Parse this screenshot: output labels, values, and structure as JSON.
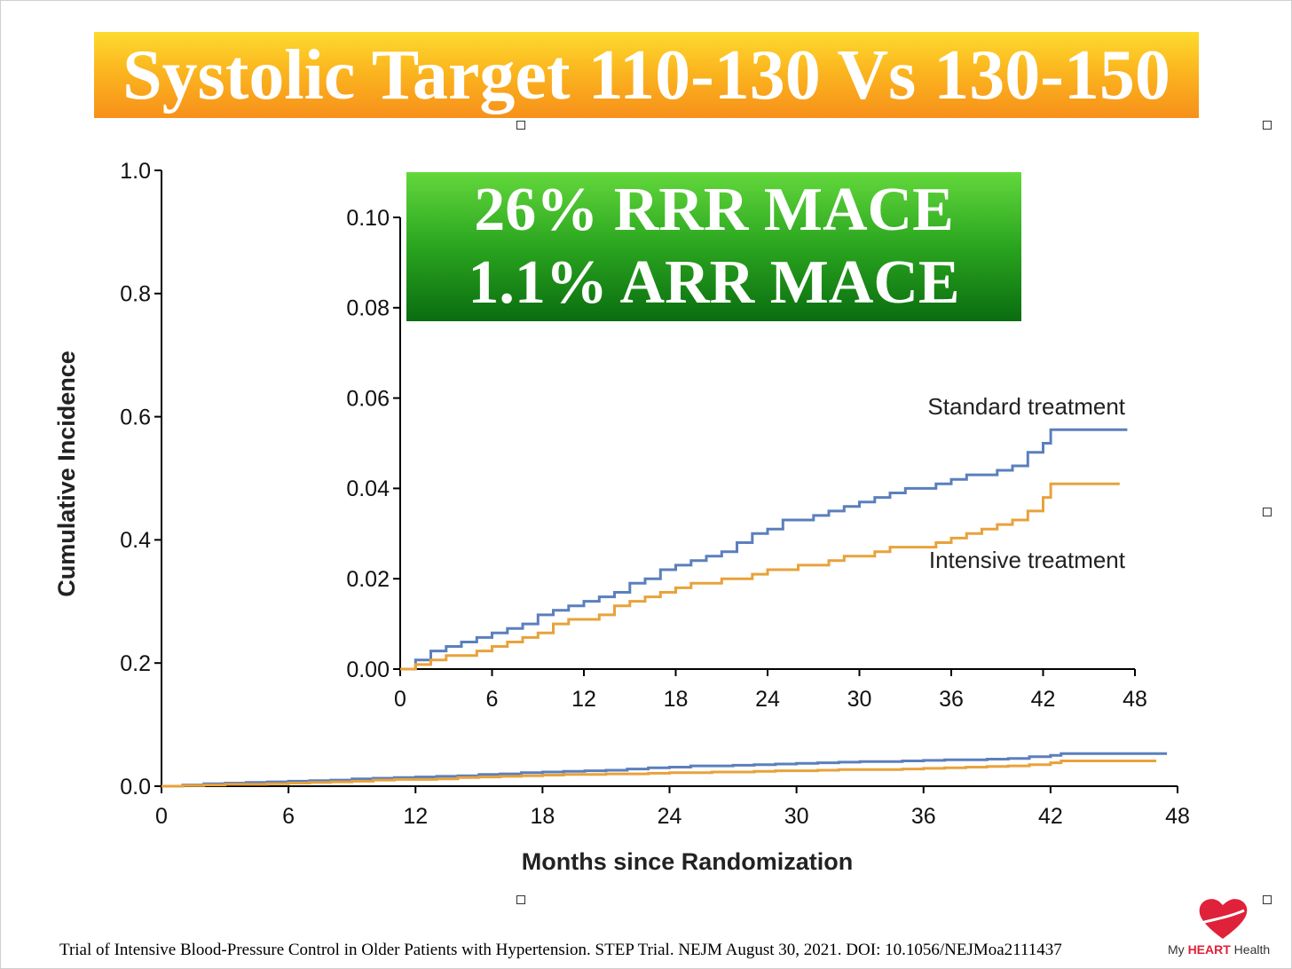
{
  "slide": {
    "title": "Systolic Target 110-130 Vs 130-150",
    "highlight_line1": "26% RRR MACE",
    "highlight_line2": "1.1% ARR MACE",
    "citation": "Trial of Intensive Blood-Pressure Control in Older Patients with Hypertension. STEP Trial. NEJM August 30, 2021. DOI: 10.1056/NEJMoa2111437",
    "logo": {
      "prefix": "My ",
      "brand": "HEART",
      "suffix": " Health"
    },
    "colors": {
      "title_gradient_top": "#fddb2e",
      "title_gradient_bottom": "#f7901a",
      "highlight_gradient_top": "#63d83c",
      "highlight_gradient_bottom": "#0a6d10",
      "standard_series": "#5b7fbd",
      "intensive_series": "#e8a23b",
      "logo_heart": "#e0213a"
    }
  },
  "chart_data": [
    {
      "type": "line",
      "xlabel": "Months since Randomization",
      "ylabel": "Cumulative Incidence",
      "xlim": [
        0,
        48
      ],
      "ylim": [
        0,
        1.0
      ],
      "x_ticks": [
        "0",
        "6",
        "12",
        "18",
        "24",
        "30",
        "36",
        "42",
        "48"
      ],
      "y_ticks": [
        "0.0",
        "0.2",
        "0.4",
        "0.6",
        "0.8",
        "1.0"
      ],
      "grid": false,
      "series": [
        {
          "name": "Standard treatment",
          "color": "#5b7fbd",
          "points": [
            [
              0,
              0
            ],
            [
              1,
              0.002
            ],
            [
              2,
              0.004
            ],
            [
              3,
              0.005
            ],
            [
              4,
              0.006
            ],
            [
              5,
              0.007
            ],
            [
              6,
              0.008
            ],
            [
              7,
              0.009
            ],
            [
              8,
              0.01
            ],
            [
              9,
              0.012
            ],
            [
              10,
              0.013
            ],
            [
              11,
              0.014
            ],
            [
              12,
              0.015
            ],
            [
              13,
              0.016
            ],
            [
              14,
              0.017
            ],
            [
              15,
              0.019
            ],
            [
              16,
              0.02
            ],
            [
              17,
              0.022
            ],
            [
              18,
              0.023
            ],
            [
              19,
              0.024
            ],
            [
              20,
              0.025
            ],
            [
              21,
              0.026
            ],
            [
              22,
              0.028
            ],
            [
              23,
              0.03
            ],
            [
              24,
              0.031
            ],
            [
              25,
              0.033
            ],
            [
              26,
              0.033
            ],
            [
              27,
              0.034
            ],
            [
              28,
              0.035
            ],
            [
              29,
              0.036
            ],
            [
              30,
              0.037
            ],
            [
              31,
              0.038
            ],
            [
              32,
              0.039
            ],
            [
              33,
              0.04
            ],
            [
              34,
              0.04
            ],
            [
              35,
              0.041
            ],
            [
              36,
              0.042
            ],
            [
              37,
              0.043
            ],
            [
              38,
              0.043
            ],
            [
              39,
              0.044
            ],
            [
              40,
              0.045
            ],
            [
              41,
              0.048
            ],
            [
              42,
              0.05
            ],
            [
              42.5,
              0.053
            ],
            [
              47.5,
              0.053
            ]
          ]
        },
        {
          "name": "Intensive treatment",
          "color": "#e8a23b",
          "points": [
            [
              0,
              0
            ],
            [
              1,
              0.001
            ],
            [
              2,
              0.002
            ],
            [
              3,
              0.003
            ],
            [
              4,
              0.003
            ],
            [
              5,
              0.004
            ],
            [
              6,
              0.005
            ],
            [
              7,
              0.006
            ],
            [
              8,
              0.007
            ],
            [
              9,
              0.008
            ],
            [
              10,
              0.01
            ],
            [
              11,
              0.011
            ],
            [
              12,
              0.011
            ],
            [
              13,
              0.012
            ],
            [
              14,
              0.014
            ],
            [
              15,
              0.015
            ],
            [
              16,
              0.016
            ],
            [
              17,
              0.017
            ],
            [
              18,
              0.018
            ],
            [
              19,
              0.019
            ],
            [
              20,
              0.019
            ],
            [
              21,
              0.02
            ],
            [
              22,
              0.02
            ],
            [
              23,
              0.021
            ],
            [
              24,
              0.022
            ],
            [
              25,
              0.022
            ],
            [
              26,
              0.023
            ],
            [
              27,
              0.023
            ],
            [
              28,
              0.024
            ],
            [
              29,
              0.025
            ],
            [
              30,
              0.025
            ],
            [
              31,
              0.026
            ],
            [
              32,
              0.027
            ],
            [
              33,
              0.027
            ],
            [
              34,
              0.027
            ],
            [
              35,
              0.028
            ],
            [
              36,
              0.029
            ],
            [
              37,
              0.03
            ],
            [
              38,
              0.031
            ],
            [
              39,
              0.032
            ],
            [
              40,
              0.033
            ],
            [
              41,
              0.035
            ],
            [
              42,
              0.038
            ],
            [
              42.5,
              0.041
            ],
            [
              47,
              0.041
            ]
          ]
        }
      ]
    },
    {
      "type": "line",
      "xlim": [
        0,
        48
      ],
      "ylim": [
        0,
        0.1
      ],
      "x_ticks": [
        "0",
        "6",
        "12",
        "18",
        "24",
        "30",
        "36",
        "42",
        "48"
      ],
      "y_ticks": [
        "0.00",
        "0.02",
        "0.04",
        "0.06",
        "0.08",
        "0.10"
      ],
      "grid": false,
      "series": [
        {
          "name": "Standard treatment",
          "color": "#5b7fbd",
          "points": [
            [
              0,
              0
            ],
            [
              1,
              0.002
            ],
            [
              2,
              0.004
            ],
            [
              3,
              0.005
            ],
            [
              4,
              0.006
            ],
            [
              5,
              0.007
            ],
            [
              6,
              0.008
            ],
            [
              7,
              0.009
            ],
            [
              8,
              0.01
            ],
            [
              9,
              0.012
            ],
            [
              10,
              0.013
            ],
            [
              11,
              0.014
            ],
            [
              12,
              0.015
            ],
            [
              13,
              0.016
            ],
            [
              14,
              0.017
            ],
            [
              15,
              0.019
            ],
            [
              16,
              0.02
            ],
            [
              17,
              0.022
            ],
            [
              18,
              0.023
            ],
            [
              19,
              0.024
            ],
            [
              20,
              0.025
            ],
            [
              21,
              0.026
            ],
            [
              22,
              0.028
            ],
            [
              23,
              0.03
            ],
            [
              24,
              0.031
            ],
            [
              25,
              0.033
            ],
            [
              26,
              0.033
            ],
            [
              27,
              0.034
            ],
            [
              28,
              0.035
            ],
            [
              29,
              0.036
            ],
            [
              30,
              0.037
            ],
            [
              31,
              0.038
            ],
            [
              32,
              0.039
            ],
            [
              33,
              0.04
            ],
            [
              34,
              0.04
            ],
            [
              35,
              0.041
            ],
            [
              36,
              0.042
            ],
            [
              37,
              0.043
            ],
            [
              38,
              0.043
            ],
            [
              39,
              0.044
            ],
            [
              40,
              0.045
            ],
            [
              41,
              0.048
            ],
            [
              42,
              0.05
            ],
            [
              42.5,
              0.053
            ],
            [
              47.5,
              0.053
            ]
          ]
        },
        {
          "name": "Intensive treatment",
          "color": "#e8a23b",
          "points": [
            [
              0,
              0
            ],
            [
              1,
              0.001
            ],
            [
              2,
              0.002
            ],
            [
              3,
              0.003
            ],
            [
              4,
              0.003
            ],
            [
              5,
              0.004
            ],
            [
              6,
              0.005
            ],
            [
              7,
              0.006
            ],
            [
              8,
              0.007
            ],
            [
              9,
              0.008
            ],
            [
              10,
              0.01
            ],
            [
              11,
              0.011
            ],
            [
              12,
              0.011
            ],
            [
              13,
              0.012
            ],
            [
              14,
              0.014
            ],
            [
              15,
              0.015
            ],
            [
              16,
              0.016
            ],
            [
              17,
              0.017
            ],
            [
              18,
              0.018
            ],
            [
              19,
              0.019
            ],
            [
              20,
              0.019
            ],
            [
              21,
              0.02
            ],
            [
              22,
              0.02
            ],
            [
              23,
              0.021
            ],
            [
              24,
              0.022
            ],
            [
              25,
              0.022
            ],
            [
              26,
              0.023
            ],
            [
              27,
              0.023
            ],
            [
              28,
              0.024
            ],
            [
              29,
              0.025
            ],
            [
              30,
              0.025
            ],
            [
              31,
              0.026
            ],
            [
              32,
              0.027
            ],
            [
              33,
              0.027
            ],
            [
              34,
              0.027
            ],
            [
              35,
              0.028
            ],
            [
              36,
              0.029
            ],
            [
              37,
              0.03
            ],
            [
              38,
              0.031
            ],
            [
              39,
              0.032
            ],
            [
              40,
              0.033
            ],
            [
              41,
              0.035
            ],
            [
              42,
              0.038
            ],
            [
              42.5,
              0.041
            ],
            [
              47,
              0.041
            ]
          ]
        }
      ]
    }
  ]
}
